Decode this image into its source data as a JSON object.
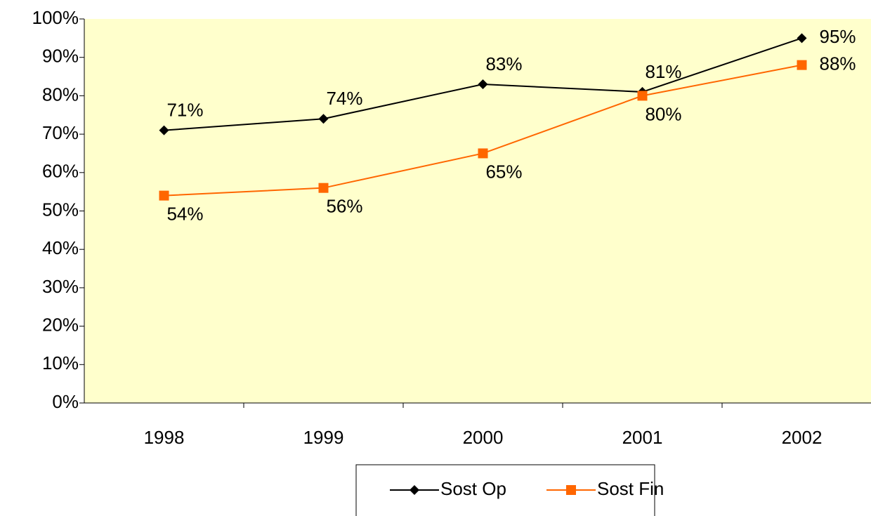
{
  "chart_data": {
    "type": "line",
    "categories": [
      "1998",
      "1999",
      "2000",
      "2001",
      "2002"
    ],
    "series": [
      {
        "name": "Sost Op",
        "color": "#000000",
        "marker": "diamond",
        "values": [
          71,
          74,
          83,
          81,
          95
        ],
        "value_labels": [
          "71%",
          "74%",
          "83%",
          "81%",
          "95%"
        ]
      },
      {
        "name": "Sost Fin",
        "color": "#ff6600",
        "marker": "square",
        "values": [
          54,
          56,
          65,
          80,
          88
        ],
        "value_labels": [
          "54%",
          "56%",
          "65%",
          "80%",
          "88%"
        ]
      }
    ],
    "ylim": [
      0,
      100
    ],
    "yticks": [
      {
        "value": 0,
        "label": "0%"
      },
      {
        "value": 10,
        "label": "10%"
      },
      {
        "value": 20,
        "label": "20%"
      },
      {
        "value": 30,
        "label": "30%"
      },
      {
        "value": 40,
        "label": "40%"
      },
      {
        "value": 50,
        "label": "50%"
      },
      {
        "value": 60,
        "label": "60%"
      },
      {
        "value": 70,
        "label": "70%"
      },
      {
        "value": 80,
        "label": "80%"
      },
      {
        "value": 90,
        "label": "90%"
      },
      {
        "value": 100,
        "label": "100%"
      }
    ],
    "plot_background": "#ffffcc",
    "legend": "bottom"
  }
}
